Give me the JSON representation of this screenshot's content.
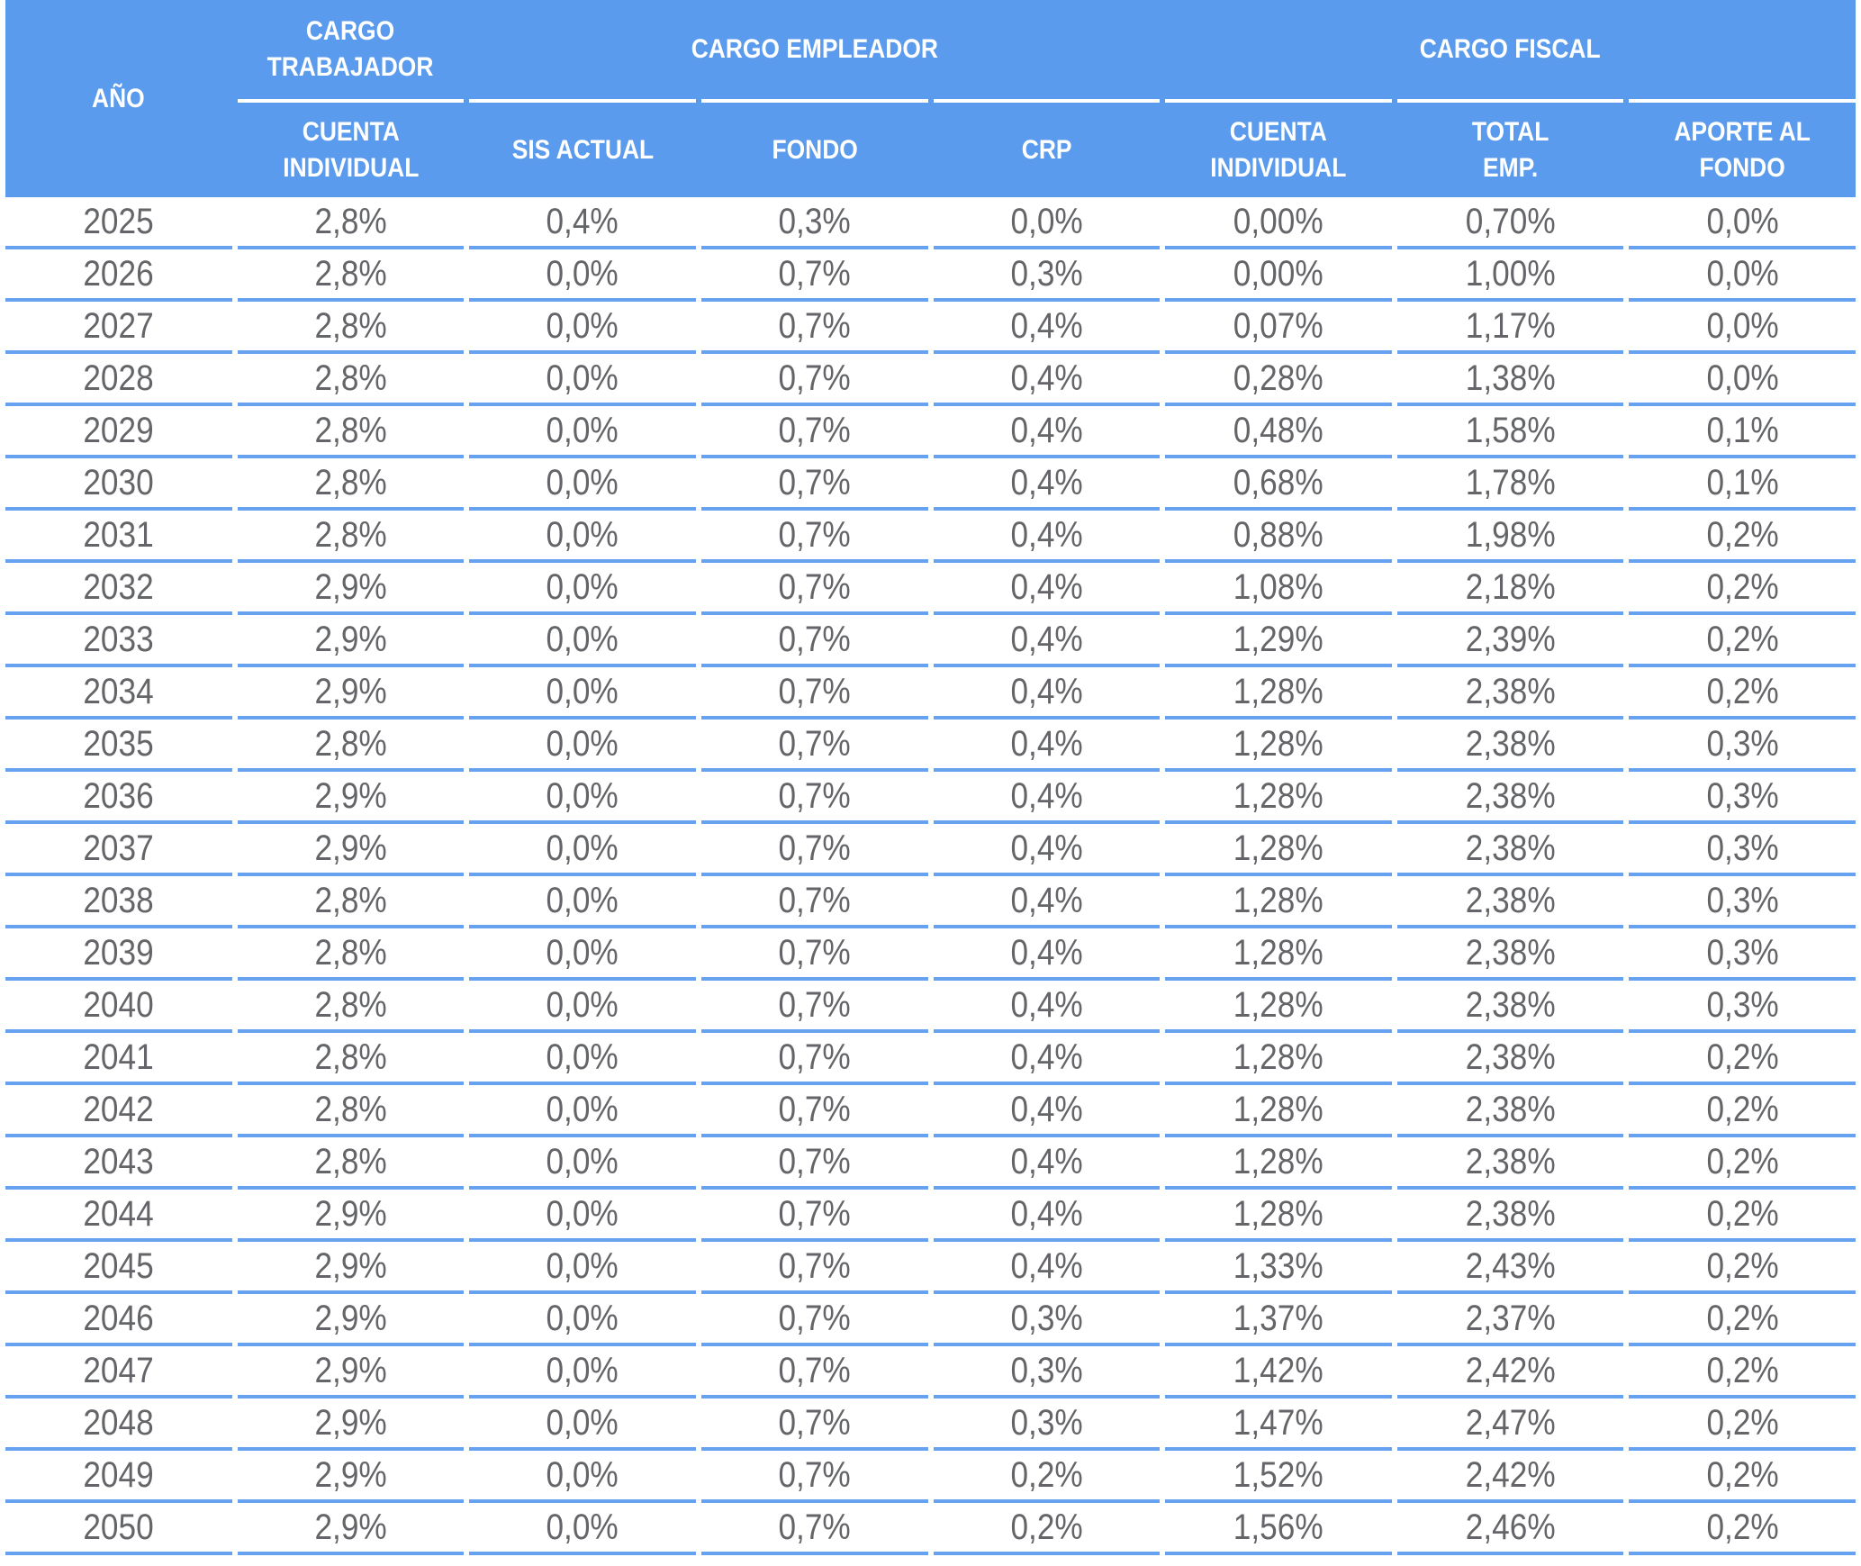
{
  "colors": {
    "header_background": "#5b9bed",
    "header_text": "#ffffff",
    "row_separator": "#67a2f0",
    "data_text": "#646568"
  },
  "table": {
    "groups": {
      "ano": "AÑO",
      "cargo_trabajador": "CARGO\nTRABAJADOR",
      "cargo_empleador": "CARGO EMPLEADOR",
      "cargo_fiscal": "CARGO FISCAL"
    },
    "columns": {
      "cuenta_individual_trabajador": "CUENTA\nINDIVIDUAL",
      "sis_actual": "SIS ACTUAL",
      "fondo": "FONDO",
      "crp": "CRP",
      "cuenta_individual_fiscal": "CUENTA\nINDIVIDUAL",
      "total_emp": "TOTAL\nEMP.",
      "aporte_al_fondo": "APORTE AL\nFONDO"
    },
    "rows": [
      [
        "2025",
        "2,8%",
        "0,4%",
        "0,3%",
        "0,0%",
        "0,00%",
        "0,70%",
        "0,0%"
      ],
      [
        "2026",
        "2,8%",
        "0,0%",
        "0,7%",
        "0,3%",
        "0,00%",
        "1,00%",
        "0,0%"
      ],
      [
        "2027",
        "2,8%",
        "0,0%",
        "0,7%",
        "0,4%",
        "0,07%",
        "1,17%",
        "0,0%"
      ],
      [
        "2028",
        "2,8%",
        "0,0%",
        "0,7%",
        "0,4%",
        "0,28%",
        "1,38%",
        "0,0%"
      ],
      [
        "2029",
        "2,8%",
        "0,0%",
        "0,7%",
        "0,4%",
        "0,48%",
        "1,58%",
        "0,1%"
      ],
      [
        "2030",
        "2,8%",
        "0,0%",
        "0,7%",
        "0,4%",
        "0,68%",
        "1,78%",
        "0,1%"
      ],
      [
        "2031",
        "2,8%",
        "0,0%",
        "0,7%",
        "0,4%",
        "0,88%",
        "1,98%",
        "0,2%"
      ],
      [
        "2032",
        "2,9%",
        "0,0%",
        "0,7%",
        "0,4%",
        "1,08%",
        "2,18%",
        "0,2%"
      ],
      [
        "2033",
        "2,9%",
        "0,0%",
        "0,7%",
        "0,4%",
        "1,29%",
        "2,39%",
        "0,2%"
      ],
      [
        "2034",
        "2,9%",
        "0,0%",
        "0,7%",
        "0,4%",
        "1,28%",
        "2,38%",
        "0,2%"
      ],
      [
        "2035",
        "2,8%",
        "0,0%",
        "0,7%",
        "0,4%",
        "1,28%",
        "2,38%",
        "0,3%"
      ],
      [
        "2036",
        "2,9%",
        "0,0%",
        "0,7%",
        "0,4%",
        "1,28%",
        "2,38%",
        "0,3%"
      ],
      [
        "2037",
        "2,9%",
        "0,0%",
        "0,7%",
        "0,4%",
        "1,28%",
        "2,38%",
        "0,3%"
      ],
      [
        "2038",
        "2,8%",
        "0,0%",
        "0,7%",
        "0,4%",
        "1,28%",
        "2,38%",
        "0,3%"
      ],
      [
        "2039",
        "2,8%",
        "0,0%",
        "0,7%",
        "0,4%",
        "1,28%",
        "2,38%",
        "0,3%"
      ],
      [
        "2040",
        "2,8%",
        "0,0%",
        "0,7%",
        "0,4%",
        "1,28%",
        "2,38%",
        "0,3%"
      ],
      [
        "2041",
        "2,8%",
        "0,0%",
        "0,7%",
        "0,4%",
        "1,28%",
        "2,38%",
        "0,2%"
      ],
      [
        "2042",
        "2,8%",
        "0,0%",
        "0,7%",
        "0,4%",
        "1,28%",
        "2,38%",
        "0,2%"
      ],
      [
        "2043",
        "2,8%",
        "0,0%",
        "0,7%",
        "0,4%",
        "1,28%",
        "2,38%",
        "0,2%"
      ],
      [
        "2044",
        "2,9%",
        "0,0%",
        "0,7%",
        "0,4%",
        "1,28%",
        "2,38%",
        "0,2%"
      ],
      [
        "2045",
        "2,9%",
        "0,0%",
        "0,7%",
        "0,4%",
        "1,33%",
        "2,43%",
        "0,2%"
      ],
      [
        "2046",
        "2,9%",
        "0,0%",
        "0,7%",
        "0,3%",
        "1,37%",
        "2,37%",
        "0,2%"
      ],
      [
        "2047",
        "2,9%",
        "0,0%",
        "0,7%",
        "0,3%",
        "1,42%",
        "2,42%",
        "0,2%"
      ],
      [
        "2048",
        "2,9%",
        "0,0%",
        "0,7%",
        "0,3%",
        "1,47%",
        "2,47%",
        "0,2%"
      ],
      [
        "2049",
        "2,9%",
        "0,0%",
        "0,7%",
        "0,2%",
        "1,52%",
        "2,42%",
        "0,2%"
      ],
      [
        "2050",
        "2,9%",
        "0,0%",
        "0,7%",
        "0,2%",
        "1,56%",
        "2,46%",
        "0,2%"
      ]
    ]
  }
}
